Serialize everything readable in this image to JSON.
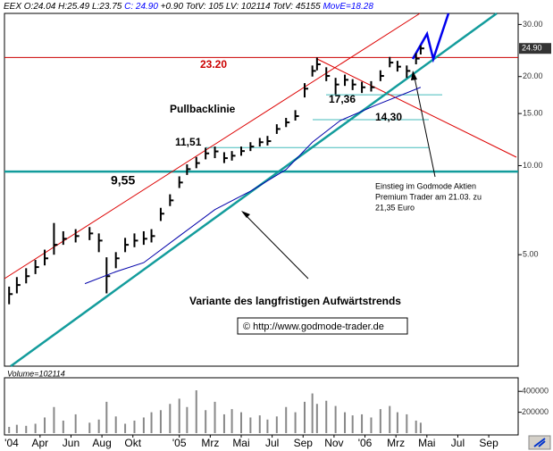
{
  "header": {
    "parts": [
      {
        "text": "EEX O:24.04 H:25.49 L:23.75",
        "color": "#000000"
      },
      {
        "text": "C: 24.90",
        "color": "#0000ff"
      },
      {
        "text": "+0.90 TotV: 105 LV: 102114 TotV: 45155",
        "color": "#000000"
      },
      {
        "text": "MovE=18.28",
        "color": "#0000ff"
      }
    ]
  },
  "chart_data": {
    "type": "ohlc",
    "log_y": true,
    "xlim": [
      0.7,
      33.9
    ],
    "ylim": [
      2.1,
      32.7
    ],
    "yticks": [
      {
        "value": 30,
        "label": "30.00"
      },
      {
        "value": 20,
        "label": "20.00"
      },
      {
        "value": 15,
        "label": "15.00"
      },
      {
        "value": 10,
        "label": "10.00"
      },
      {
        "value": 5,
        "label": "5.00"
      }
    ],
    "xticks": [
      {
        "value": 0,
        "label": "'04"
      },
      {
        "value": 3,
        "label": "Apr"
      },
      {
        "value": 5,
        "label": "Jun"
      },
      {
        "value": 7,
        "label": "Aug"
      },
      {
        "value": 9,
        "label": "Okt"
      },
      {
        "value": 12,
        "label": "'05"
      },
      {
        "value": 14,
        "label": "Mrz"
      },
      {
        "value": 16,
        "label": "Mai"
      },
      {
        "value": 18,
        "label": "Jul"
      },
      {
        "value": 20,
        "label": "Sep"
      },
      {
        "value": 22,
        "label": "Nov"
      },
      {
        "value": 24,
        "label": "'06"
      },
      {
        "value": 26,
        "label": "Mrz"
      },
      {
        "value": 28,
        "label": "Mai"
      },
      {
        "value": 30,
        "label": "Jul"
      },
      {
        "value": 32,
        "label": "Sep"
      }
    ],
    "color": "#000000",
    "x": [
      1.0,
      1.5,
      2.1,
      2.7,
      3.3,
      3.9,
      4.5,
      5.3,
      6.2,
      6.8,
      7.3,
      7.9,
      8.5,
      9.1,
      9.7,
      10.2,
      10.8,
      11.4,
      12.0,
      12.5,
      13.1,
      13.7,
      14.3,
      14.9,
      15.4,
      16.0,
      16.6,
      17.2,
      17.7,
      18.3,
      18.9,
      19.5,
      20.1,
      20.6,
      20.9,
      21.5,
      22.1,
      22.7,
      23.2,
      23.8,
      24.4,
      25.0,
      25.6,
      26.1,
      26.7,
      27.3,
      27.6
    ],
    "high": [
      3.9,
      4.2,
      4.5,
      4.8,
      5.2,
      6.4,
      6.0,
      6.1,
      6.2,
      5.9,
      4.9,
      5.1,
      5.7,
      5.9,
      6.0,
      6.1,
      7.2,
      8.0,
      9.2,
      10.1,
      10.7,
      11.5,
      11.6,
      11.1,
      11.2,
      11.6,
      12.0,
      12.4,
      12.6,
      13.8,
      14.5,
      15.4,
      19.0,
      21.8,
      23.2,
      21.5,
      19.8,
      20.3,
      19.6,
      19.2,
      19.3,
      21.0,
      23.3,
      22.6,
      21.8,
      24.0,
      25.49
    ],
    "low": [
      3.4,
      3.7,
      4.0,
      4.3,
      4.6,
      5.0,
      5.4,
      5.5,
      5.6,
      5.1,
      3.7,
      4.5,
      5.1,
      5.3,
      5.4,
      5.5,
      6.5,
      7.3,
      8.4,
      9.3,
      9.8,
      10.5,
      10.6,
      10.2,
      10.4,
      10.8,
      11.2,
      11.6,
      11.7,
      12.8,
      13.5,
      14.2,
      17.0,
      20.0,
      21.0,
      19.3,
      17.4,
      18.6,
      18.0,
      17.6,
      17.8,
      19.3,
      21.5,
      20.8,
      19.8,
      22.0,
      23.75
    ],
    "close": [
      3.68,
      3.95,
      4.23,
      4.54,
      4.86,
      5.4,
      5.66,
      5.78,
      5.9,
      5.58,
      4.23,
      4.86,
      5.4,
      5.58,
      5.66,
      5.78,
      6.88,
      7.63,
      8.77,
      9.73,
      10.2,
      11.0,
      11.17,
      10.6,
      10.8,
      11.2,
      11.6,
      12.0,
      12.1,
      13.3,
      14.0,
      14.7,
      18.2,
      20.9,
      22.0,
      20.1,
      18.8,
      19.5,
      18.8,
      18.4,
      18.4,
      20.1,
      22.3,
      21.6,
      20.9,
      23.0,
      24.9
    ],
    "moving_average": {
      "color": "#0000aa",
      "x": [
        5.9,
        7.9,
        9.7,
        12.0,
        14.3,
        16.6,
        18.9,
        20.6,
        22.4,
        24.7,
        27.6
      ],
      "values": [
        3.99,
        4.38,
        4.7,
        5.78,
        7.1,
        8.2,
        9.7,
        12.0,
        14.2,
        16.0,
        18.4
      ]
    },
    "price_tag": {
      "value": 24.9,
      "label": "24.90"
    },
    "levels": [
      {
        "value": 23.2,
        "label": "23.20",
        "color": "#cc0000"
      },
      {
        "value": 17.36,
        "label": "17,36",
        "color": "#44bbbb"
      },
      {
        "value": 14.3,
        "label": "14,30",
        "color": "#44bbbb"
      },
      {
        "value": 11.51,
        "label": "11,51",
        "color": "#44bbbb"
      },
      {
        "value": 9.55,
        "label": "9,55",
        "color": "#139c9c"
      }
    ],
    "annotations": {
      "pullback": "Pullbacklinie",
      "trend": "Variante des langfristigen Aufwärtstrends",
      "entry": [
        "Einstieg im Godmode Aktien",
        "Premium Trader am 21.03. zu",
        "21,35 Euro"
      ],
      "copyright": "© http://www.godmode-trader.de"
    },
    "volume": {
      "title": "Volume=102114",
      "color": "#888888",
      "ylim": [
        0,
        530000
      ],
      "yticks": [
        400000,
        200000
      ],
      "values": [
        60000,
        80000,
        70000,
        90000,
        150000,
        250000,
        120000,
        180000,
        100000,
        130000,
        300000,
        160000,
        90000,
        120000,
        150000,
        200000,
        220000,
        280000,
        330000,
        250000,
        410000,
        220000,
        300000,
        180000,
        230000,
        200000,
        150000,
        170000,
        130000,
        160000,
        250000,
        200000,
        300000,
        380000,
        280000,
        310000,
        260000,
        200000,
        170000,
        180000,
        150000,
        230000,
        260000,
        200000,
        180000,
        120000,
        100000
      ]
    }
  }
}
